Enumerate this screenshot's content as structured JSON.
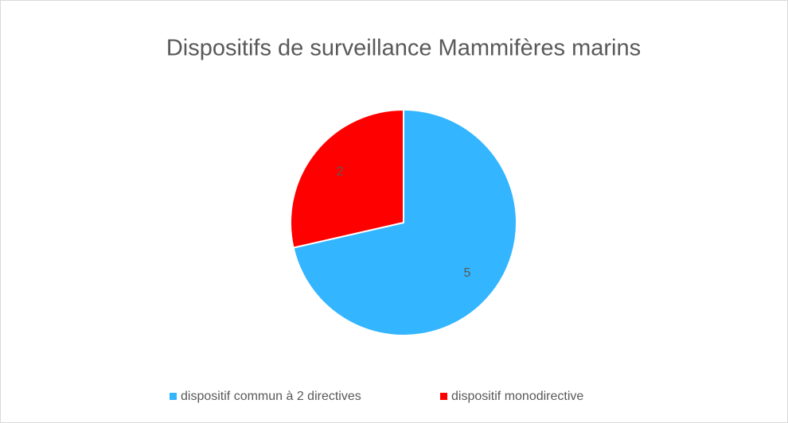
{
  "chart_data": {
    "type": "pie",
    "title": "Dispositifs de surveillance Mammifères marins",
    "categories": [
      "dispositif commun à 2 directives",
      "dispositif monodirective"
    ],
    "values": [
      5,
      2
    ],
    "colors": [
      "#33b5ff",
      "#ff0000"
    ],
    "legend": "bottom"
  }
}
